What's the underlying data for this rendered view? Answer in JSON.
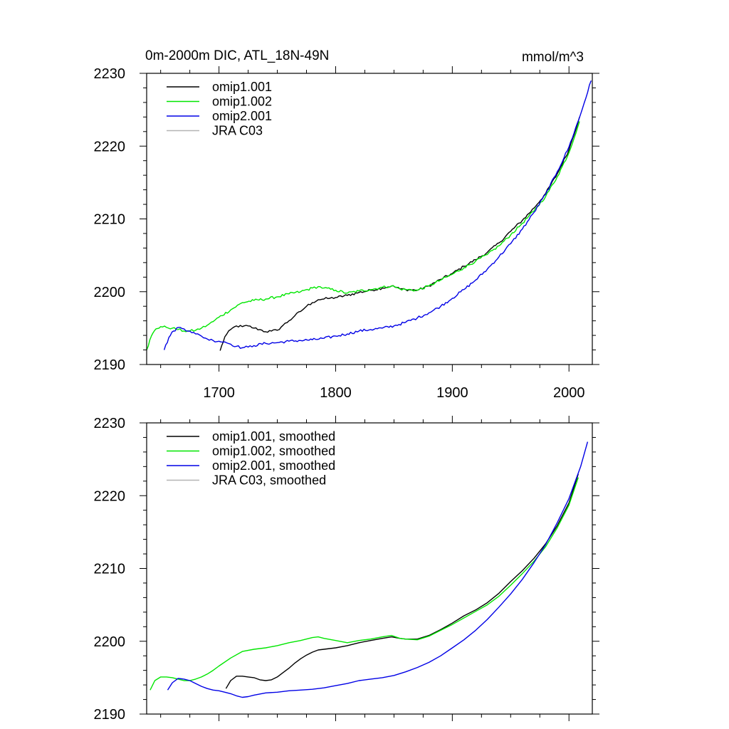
{
  "figure": {
    "title_left": "0m-2000m DIC, ATL_18N-49N",
    "title_right": "mmol/m^3"
  },
  "chart_data": [
    {
      "type": "line",
      "title": "0m-2000m DIC, ATL_18N-49N",
      "units_label": "mmol/m^3",
      "xlim": [
        1638,
        2020
      ],
      "ylim": [
        2190,
        2230
      ],
      "x_ticks": [
        1700,
        1800,
        1900,
        2000
      ],
      "y_ticks": [
        2190,
        2200,
        2210,
        2220,
        2230
      ],
      "x_tick_labels": [
        "1700",
        "1800",
        "1900",
        "2000"
      ],
      "y_tick_labels": [
        "2190",
        "2200",
        "2210",
        "2220",
        "2230"
      ],
      "legend_position": "top-left",
      "grid": false,
      "series": [
        {
          "name": "omip1.001",
          "color": "#000000",
          "noisy": true,
          "x": [
            1701,
            1705,
            1710,
            1715,
            1720,
            1725,
            1730,
            1735,
            1740,
            1745,
            1750,
            1755,
            1760,
            1765,
            1770,
            1775,
            1780,
            1785,
            1790,
            1795,
            1800,
            1810,
            1820,
            1830,
            1840,
            1848,
            1855,
            1860,
            1870,
            1880,
            1890,
            1900,
            1910,
            1920,
            1930,
            1940,
            1950,
            1960,
            1970,
            1980,
            1990,
            2000,
            2009
          ],
          "y": [
            2191.9,
            2193.8,
            2194.8,
            2195.3,
            2195.2,
            2195.3,
            2195.0,
            2194.8,
            2194.5,
            2194.6,
            2194.7,
            2195.4,
            2196.0,
            2196.7,
            2197.3,
            2198.0,
            2198.5,
            2198.9,
            2199.0,
            2199.1,
            2199.2,
            2199.5,
            2199.9,
            2200.2,
            2200.5,
            2200.8,
            2200.4,
            2200.3,
            2200.2,
            2200.8,
            2201.7,
            2202.5,
            2203.5,
            2204.4,
            2205.4,
            2206.7,
            2208.3,
            2209.8,
            2211.5,
            2213.5,
            2216.2,
            2219.5,
            2224.0
          ]
        },
        {
          "name": "omip1.002",
          "color": "#00e600",
          "noisy": true,
          "x": [
            1638,
            1642,
            1646,
            1650,
            1655,
            1660,
            1665,
            1670,
            1675,
            1680,
            1685,
            1690,
            1695,
            1700,
            1710,
            1720,
            1730,
            1740,
            1750,
            1760,
            1770,
            1780,
            1785,
            1790,
            1800,
            1810,
            1820,
            1830,
            1840,
            1848,
            1855,
            1860,
            1870,
            1880,
            1890,
            1900,
            1910,
            1920,
            1930,
            1940,
            1950,
            1960,
            1970,
            1980,
            1990,
            2000,
            2009
          ],
          "y": [
            2192.0,
            2193.9,
            2194.9,
            2195.2,
            2195.1,
            2195.0,
            2194.8,
            2194.6,
            2194.6,
            2194.7,
            2195.0,
            2195.4,
            2195.9,
            2196.5,
            2197.5,
            2198.5,
            2198.8,
            2199.0,
            2199.3,
            2199.7,
            2200.0,
            2200.5,
            2200.7,
            2200.5,
            2200.2,
            2199.8,
            2200.1,
            2200.3,
            2200.6,
            2200.8,
            2200.4,
            2200.3,
            2200.2,
            2200.8,
            2201.6,
            2202.4,
            2203.3,
            2204.2,
            2205.1,
            2206.3,
            2207.8,
            2209.4,
            2211.1,
            2213.1,
            2215.8,
            2219.1,
            2223.4
          ]
        },
        {
          "name": "omip2.001",
          "color": "#0000e6",
          "noisy": true,
          "x": [
            1653,
            1657,
            1661,
            1665,
            1670,
            1675,
            1680,
            1685,
            1690,
            1695,
            1700,
            1705,
            1710,
            1715,
            1720,
            1725,
            1730,
            1740,
            1750,
            1760,
            1770,
            1780,
            1790,
            1800,
            1810,
            1820,
            1830,
            1840,
            1850,
            1860,
            1870,
            1880,
            1890,
            1900,
            1910,
            1920,
            1930,
            1940,
            1950,
            1960,
            1970,
            1980,
            1990,
            2000,
            2010,
            2019
          ],
          "y": [
            2192.0,
            2193.7,
            2194.6,
            2195.1,
            2194.9,
            2194.6,
            2194.2,
            2193.9,
            2193.5,
            2193.3,
            2193.2,
            2193.1,
            2192.8,
            2192.5,
            2192.3,
            2192.4,
            2192.6,
            2192.9,
            2193.0,
            2193.2,
            2193.3,
            2193.4,
            2193.6,
            2193.9,
            2194.2,
            2194.6,
            2194.8,
            2195.0,
            2195.3,
            2195.8,
            2196.4,
            2197.1,
            2198.0,
            2199.1,
            2200.3,
            2201.6,
            2203.1,
            2204.8,
            2206.6,
            2208.6,
            2210.9,
            2213.4,
            2216.5,
            2219.9,
            2224.4,
            2229.0
          ]
        },
        {
          "name": "JRA C03",
          "color": "#b4b4b4",
          "noisy": false,
          "x": [],
          "y": []
        }
      ]
    },
    {
      "type": "line",
      "title": "",
      "xlim": [
        1638,
        2020
      ],
      "ylim": [
        2190,
        2230
      ],
      "x_ticks": [
        1700,
        1800,
        1900,
        2000
      ],
      "y_ticks": [
        2190,
        2200,
        2210,
        2220,
        2230
      ],
      "x_tick_labels": [],
      "y_tick_labels": [
        "2190",
        "2200",
        "2210",
        "2220",
        "2230"
      ],
      "legend_position": "top-left",
      "grid": false,
      "series": [
        {
          "name": "omip1.001, smoothed",
          "color": "#000000",
          "noisy": false,
          "x": [
            1706,
            1710,
            1715,
            1720,
            1725,
            1730,
            1735,
            1740,
            1745,
            1750,
            1755,
            1760,
            1765,
            1770,
            1775,
            1780,
            1785,
            1790,
            1800,
            1810,
            1820,
            1830,
            1840,
            1848,
            1855,
            1860,
            1870,
            1880,
            1890,
            1900,
            1910,
            1920,
            1930,
            1940,
            1950,
            1960,
            1970,
            1980,
            1990,
            2000,
            2008
          ],
          "y": [
            2193.5,
            2194.6,
            2195.2,
            2195.2,
            2195.1,
            2195.0,
            2194.7,
            2194.6,
            2194.7,
            2195.1,
            2195.7,
            2196.3,
            2197.0,
            2197.6,
            2198.1,
            2198.5,
            2198.8,
            2198.9,
            2199.1,
            2199.4,
            2199.8,
            2200.1,
            2200.4,
            2200.6,
            2200.4,
            2200.3,
            2200.3,
            2200.8,
            2201.6,
            2202.5,
            2203.5,
            2204.3,
            2205.3,
            2206.6,
            2208.2,
            2209.7,
            2211.4,
            2213.4,
            2215.9,
            2219.0,
            2223.0
          ]
        },
        {
          "name": "omip1.002, smoothed",
          "color": "#00e600",
          "noisy": false,
          "x": [
            1641,
            1645,
            1650,
            1655,
            1660,
            1665,
            1670,
            1675,
            1680,
            1685,
            1690,
            1695,
            1700,
            1710,
            1720,
            1730,
            1740,
            1750,
            1760,
            1770,
            1780,
            1785,
            1790,
            1800,
            1810,
            1820,
            1830,
            1840,
            1848,
            1855,
            1860,
            1870,
            1880,
            1890,
            1900,
            1910,
            1920,
            1930,
            1940,
            1950,
            1960,
            1970,
            1980,
            1990,
            2000,
            2008
          ],
          "y": [
            2193.3,
            2194.6,
            2195.1,
            2195.1,
            2195.0,
            2194.8,
            2194.6,
            2194.6,
            2194.8,
            2195.1,
            2195.5,
            2196.0,
            2196.6,
            2197.7,
            2198.6,
            2198.9,
            2199.1,
            2199.4,
            2199.8,
            2200.1,
            2200.5,
            2200.6,
            2200.4,
            2200.1,
            2199.8,
            2200.1,
            2200.3,
            2200.6,
            2200.8,
            2200.4,
            2200.3,
            2200.2,
            2200.7,
            2201.5,
            2202.3,
            2203.2,
            2204.1,
            2205.0,
            2206.2,
            2207.7,
            2209.3,
            2211.0,
            2213.0,
            2215.6,
            2218.7,
            2222.5
          ]
        },
        {
          "name": "omip2.001, smoothed",
          "color": "#0000e6",
          "noisy": false,
          "x": [
            1656,
            1660,
            1665,
            1670,
            1675,
            1680,
            1685,
            1690,
            1695,
            1700,
            1705,
            1710,
            1715,
            1720,
            1725,
            1730,
            1740,
            1750,
            1760,
            1770,
            1780,
            1790,
            1800,
            1810,
            1820,
            1830,
            1840,
            1850,
            1860,
            1870,
            1880,
            1890,
            1900,
            1910,
            1920,
            1930,
            1940,
            1950,
            1960,
            1970,
            1980,
            1990,
            2000,
            2010,
            2016
          ],
          "y": [
            2193.3,
            2194.3,
            2194.9,
            2194.8,
            2194.6,
            2194.2,
            2193.8,
            2193.5,
            2193.3,
            2193.2,
            2193.0,
            2192.8,
            2192.5,
            2192.3,
            2192.4,
            2192.6,
            2192.9,
            2193.0,
            2193.2,
            2193.3,
            2193.4,
            2193.6,
            2193.9,
            2194.2,
            2194.6,
            2194.8,
            2195.0,
            2195.3,
            2195.8,
            2196.4,
            2197.1,
            2198.0,
            2199.1,
            2200.2,
            2201.5,
            2203.0,
            2204.7,
            2206.5,
            2208.5,
            2210.8,
            2213.3,
            2216.3,
            2219.6,
            2224.0,
            2227.4
          ]
        },
        {
          "name": "JRA C03, smoothed",
          "color": "#b4b4b4",
          "noisy": false,
          "x": [],
          "y": []
        }
      ]
    }
  ]
}
